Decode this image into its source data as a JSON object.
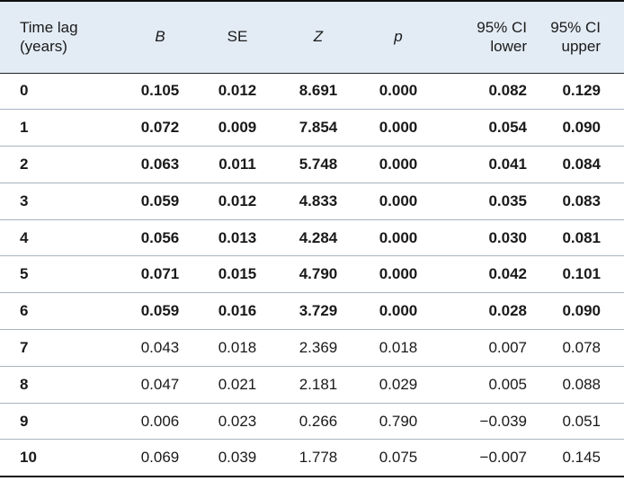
{
  "table": {
    "headers": {
      "lag_line1": "Time lag",
      "lag_line2": "(years)",
      "b": "B",
      "se": "SE",
      "z": "Z",
      "p": "p",
      "ci_lower_line1": "95% CI",
      "ci_lower_line2": "lower",
      "ci_upper_line1": "95% CI",
      "ci_upper_line2": "upper"
    },
    "rows": [
      {
        "lag": "0",
        "b": "0.105",
        "se": "0.012",
        "z": "8.691",
        "p": "0.000",
        "ci_lower": "0.082",
        "ci_upper": "0.129",
        "bold": true
      },
      {
        "lag": "1",
        "b": "0.072",
        "se": "0.009",
        "z": "7.854",
        "p": "0.000",
        "ci_lower": "0.054",
        "ci_upper": "0.090",
        "bold": true
      },
      {
        "lag": "2",
        "b": "0.063",
        "se": "0.011",
        "z": "5.748",
        "p": "0.000",
        "ci_lower": "0.041",
        "ci_upper": "0.084",
        "bold": true
      },
      {
        "lag": "3",
        "b": "0.059",
        "se": "0.012",
        "z": "4.833",
        "p": "0.000",
        "ci_lower": "0.035",
        "ci_upper": "0.083",
        "bold": true
      },
      {
        "lag": "4",
        "b": "0.056",
        "se": "0.013",
        "z": "4.284",
        "p": "0.000",
        "ci_lower": "0.030",
        "ci_upper": "0.081",
        "bold": true
      },
      {
        "lag": "5",
        "b": "0.071",
        "se": "0.015",
        "z": "4.790",
        "p": "0.000",
        "ci_lower": "0.042",
        "ci_upper": "0.101",
        "bold": true
      },
      {
        "lag": "6",
        "b": "0.059",
        "se": "0.016",
        "z": "3.729",
        "p": "0.000",
        "ci_lower": "0.028",
        "ci_upper": "0.090",
        "bold": true
      },
      {
        "lag": "7",
        "b": "0.043",
        "se": "0.018",
        "z": "2.369",
        "p": "0.018",
        "ci_lower": "0.007",
        "ci_upper": "0.078",
        "bold": false
      },
      {
        "lag": "8",
        "b": "0.047",
        "se": "0.021",
        "z": "2.181",
        "p": "0.029",
        "ci_lower": "0.005",
        "ci_upper": "0.088",
        "bold": false
      },
      {
        "lag": "9",
        "b": "0.006",
        "se": "0.023",
        "z": "0.266",
        "p": "0.790",
        "ci_lower": "−0.039",
        "ci_upper": "0.051",
        "bold": false
      },
      {
        "lag": "10",
        "b": "0.069",
        "se": "0.039",
        "z": "1.778",
        "p": "0.075",
        "ci_lower": "−0.007",
        "ci_upper": "0.145",
        "bold": false
      }
    ]
  }
}
